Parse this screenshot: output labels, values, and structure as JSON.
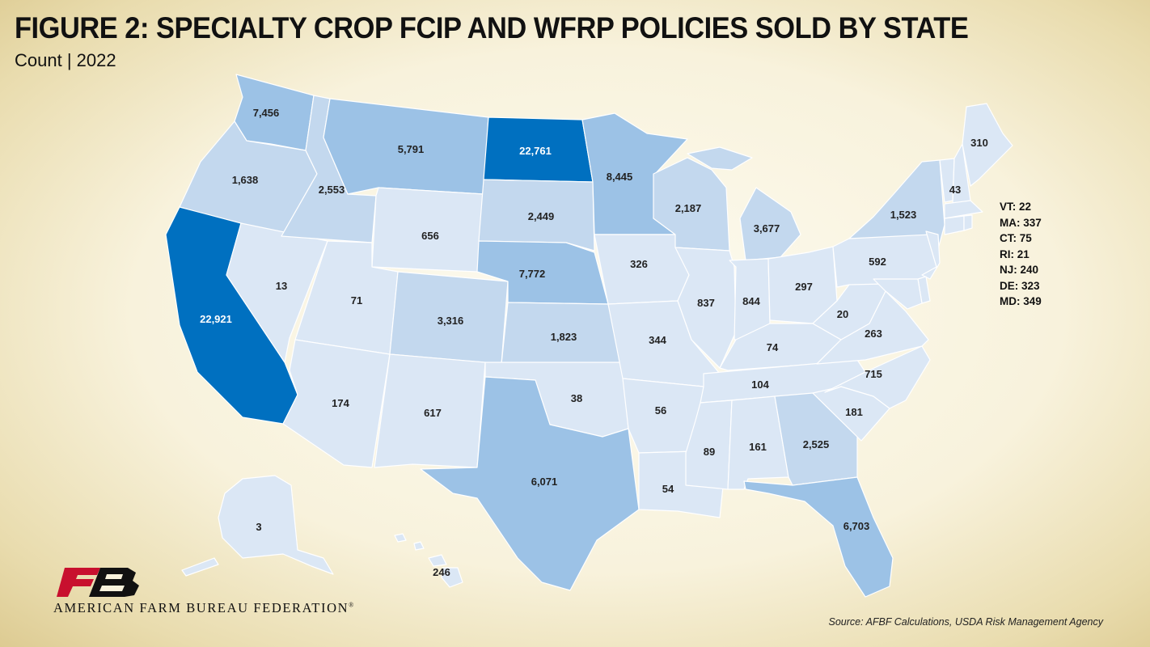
{
  "title": "FIGURE 2: SPECIALTY CROP FCIP AND WFRP POLICIES SOLD BY STATE",
  "subtitle": "Count | 2022",
  "source": "Source: AFBF Calculations, USDA Risk Management Agency",
  "logo_text": "AMERICAN FARM BUREAU FEDERATION",
  "logo_mark": "FB",
  "colors": {
    "tier1": "#dbe7f5",
    "tier2": "#c3d8ee",
    "tier3": "#9cc2e6",
    "tier4": "#0070c0",
    "label_dark": "#222222",
    "label_light": "#ffffff"
  },
  "small_states": [
    {
      "abbr": "VT",
      "sep": ": ",
      "value": "22"
    },
    {
      "abbr": "MA",
      "sep": ": ",
      "value": "337"
    },
    {
      "abbr": "CT",
      "sep": ": ",
      "value": "75"
    },
    {
      "abbr": "RI",
      "sep": ": ",
      "value": "21"
    },
    {
      "abbr": "NJ",
      "sep": ": ",
      "value": "240"
    },
    {
      "abbr": "DE",
      "sep": ": ",
      "value": "323"
    },
    {
      "abbr": "MD",
      "sep": ": ",
      "value": "349"
    }
  ],
  "states": [
    {
      "abbr": "WA",
      "value": 7456,
      "label": "7,456"
    },
    {
      "abbr": "OR",
      "value": 1638,
      "label": "1,638"
    },
    {
      "abbr": "CA",
      "value": 22921,
      "label": "22,921"
    },
    {
      "abbr": "NV",
      "value": 13,
      "label": "13"
    },
    {
      "abbr": "ID",
      "value": 2553,
      "label": "2,553"
    },
    {
      "abbr": "MT",
      "value": 5791,
      "label": "5,791"
    },
    {
      "abbr": "WY",
      "value": 656,
      "label": "656"
    },
    {
      "abbr": "UT",
      "value": 71,
      "label": "71"
    },
    {
      "abbr": "AZ",
      "value": 174,
      "label": "174"
    },
    {
      "abbr": "CO",
      "value": 3316,
      "label": "3,316"
    },
    {
      "abbr": "NM",
      "value": 617,
      "label": "617"
    },
    {
      "abbr": "ND",
      "value": 22761,
      "label": "22,761"
    },
    {
      "abbr": "SD",
      "value": 2449,
      "label": "2,449"
    },
    {
      "abbr": "NE",
      "value": 7772,
      "label": "7,772"
    },
    {
      "abbr": "KS",
      "value": 1823,
      "label": "1,823"
    },
    {
      "abbr": "OK",
      "value": 38,
      "label": "38"
    },
    {
      "abbr": "TX",
      "value": 6071,
      "label": "6,071"
    },
    {
      "abbr": "MN",
      "value": 8445,
      "label": "8,445"
    },
    {
      "abbr": "IA",
      "value": 326,
      "label": "326"
    },
    {
      "abbr": "MO",
      "value": 344,
      "label": "344"
    },
    {
      "abbr": "AR",
      "value": 56,
      "label": "56"
    },
    {
      "abbr": "LA",
      "value": 54,
      "label": "54"
    },
    {
      "abbr": "WI",
      "value": 2187,
      "label": "2,187"
    },
    {
      "abbr": "IL",
      "value": 837,
      "label": "837"
    },
    {
      "abbr": "MI",
      "value": 3677,
      "label": "3,677"
    },
    {
      "abbr": "IN",
      "value": 844,
      "label": "844"
    },
    {
      "abbr": "OH",
      "value": 297,
      "label": "297"
    },
    {
      "abbr": "KY",
      "value": 74,
      "label": "74"
    },
    {
      "abbr": "TN",
      "value": 104,
      "label": "104"
    },
    {
      "abbr": "MS",
      "value": 89,
      "label": "89"
    },
    {
      "abbr": "AL",
      "value": 161,
      "label": "161"
    },
    {
      "abbr": "GA",
      "value": 2525,
      "label": "2,525"
    },
    {
      "abbr": "FL",
      "value": 6703,
      "label": "6,703"
    },
    {
      "abbr": "SC",
      "value": 181,
      "label": "181"
    },
    {
      "abbr": "NC",
      "value": 715,
      "label": "715"
    },
    {
      "abbr": "VA",
      "value": 263,
      "label": "263"
    },
    {
      "abbr": "WV",
      "value": 20,
      "label": "20"
    },
    {
      "abbr": "PA",
      "value": 592,
      "label": "592"
    },
    {
      "abbr": "NY",
      "value": 1523,
      "label": "1,523"
    },
    {
      "abbr": "NH",
      "value": 43,
      "label": "43"
    },
    {
      "abbr": "ME",
      "value": 310,
      "label": "310"
    },
    {
      "abbr": "AK",
      "value": 3,
      "label": "3"
    },
    {
      "abbr": "HI",
      "value": 246,
      "label": "246"
    },
    {
      "abbr": "VT",
      "value": 22
    },
    {
      "abbr": "MA",
      "value": 337
    },
    {
      "abbr": "CT",
      "value": 75
    },
    {
      "abbr": "RI",
      "value": 21
    },
    {
      "abbr": "NJ",
      "value": 240
    },
    {
      "abbr": "DE",
      "value": 323
    },
    {
      "abbr": "MD",
      "value": 349
    }
  ]
}
